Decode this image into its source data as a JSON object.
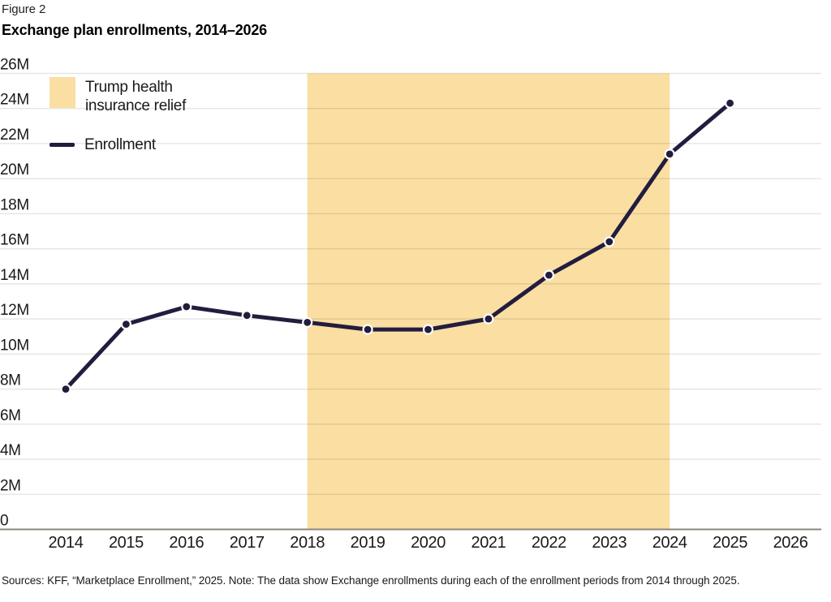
{
  "figure_label": "Figure 2",
  "title": "Exchange plan enrollments, 2014–2026",
  "legend": {
    "band_label": "Trump health insurance relief",
    "band_label_line1": "Trump health",
    "band_label_line2": "insurance relief",
    "line_label": "Enrollment"
  },
  "source_note": "Sources: KFF, “Marketplace Enrollment,” 2025. Note: The data show Exchange enrollments during each of the enrollment periods from 2014 through 2025.",
  "colors": {
    "band": "#FBDEA2",
    "line": "#221D3E",
    "marker_fill": "#221D3E",
    "marker_ring": "#FFFFFF",
    "gridline": "rgba(0,0,0,0.10)",
    "axis": "#8C877D",
    "tick_text": "#1a1a1a"
  },
  "chart_data": {
    "type": "line",
    "title": "Exchange plan enrollments, 2014–2026",
    "series": [
      {
        "name": "Enrollment",
        "x": [
          2014,
          2015,
          2016,
          2017,
          2018,
          2019,
          2020,
          2021,
          2022,
          2023,
          2024,
          2025
        ],
        "values": [
          8.0,
          11.7,
          12.7,
          12.2,
          11.8,
          11.4,
          11.4,
          12.0,
          14.5,
          16.4,
          21.4,
          24.3
        ]
      }
    ],
    "unit": "millions",
    "x_ticks": [
      2014,
      2015,
      2016,
      2017,
      2018,
      2019,
      2020,
      2021,
      2022,
      2023,
      2024,
      2025,
      2026
    ],
    "x_tick_labels": [
      "2014",
      "2015",
      "2016",
      "2017",
      "2018",
      "2019",
      "2020",
      "2021",
      "2022",
      "2023",
      "2024",
      "2025",
      "2026"
    ],
    "y_ticks": [
      0,
      2,
      4,
      6,
      8,
      10,
      12,
      14,
      16,
      18,
      20,
      22,
      24,
      26
    ],
    "y_tick_labels": [
      "0",
      "2M",
      "4M",
      "6M",
      "8M",
      "10M",
      "12M",
      "14M",
      "16M",
      "18M",
      "20M",
      "22M",
      "24M",
      "26M"
    ],
    "ylim": [
      0,
      26
    ],
    "xlim": [
      2014,
      2026
    ],
    "grid": "horizontal",
    "legend_position": "top-left-inside",
    "shaded_band": {
      "label": "Trump health insurance relief",
      "x_start": 2018,
      "x_end": 2024
    }
  }
}
